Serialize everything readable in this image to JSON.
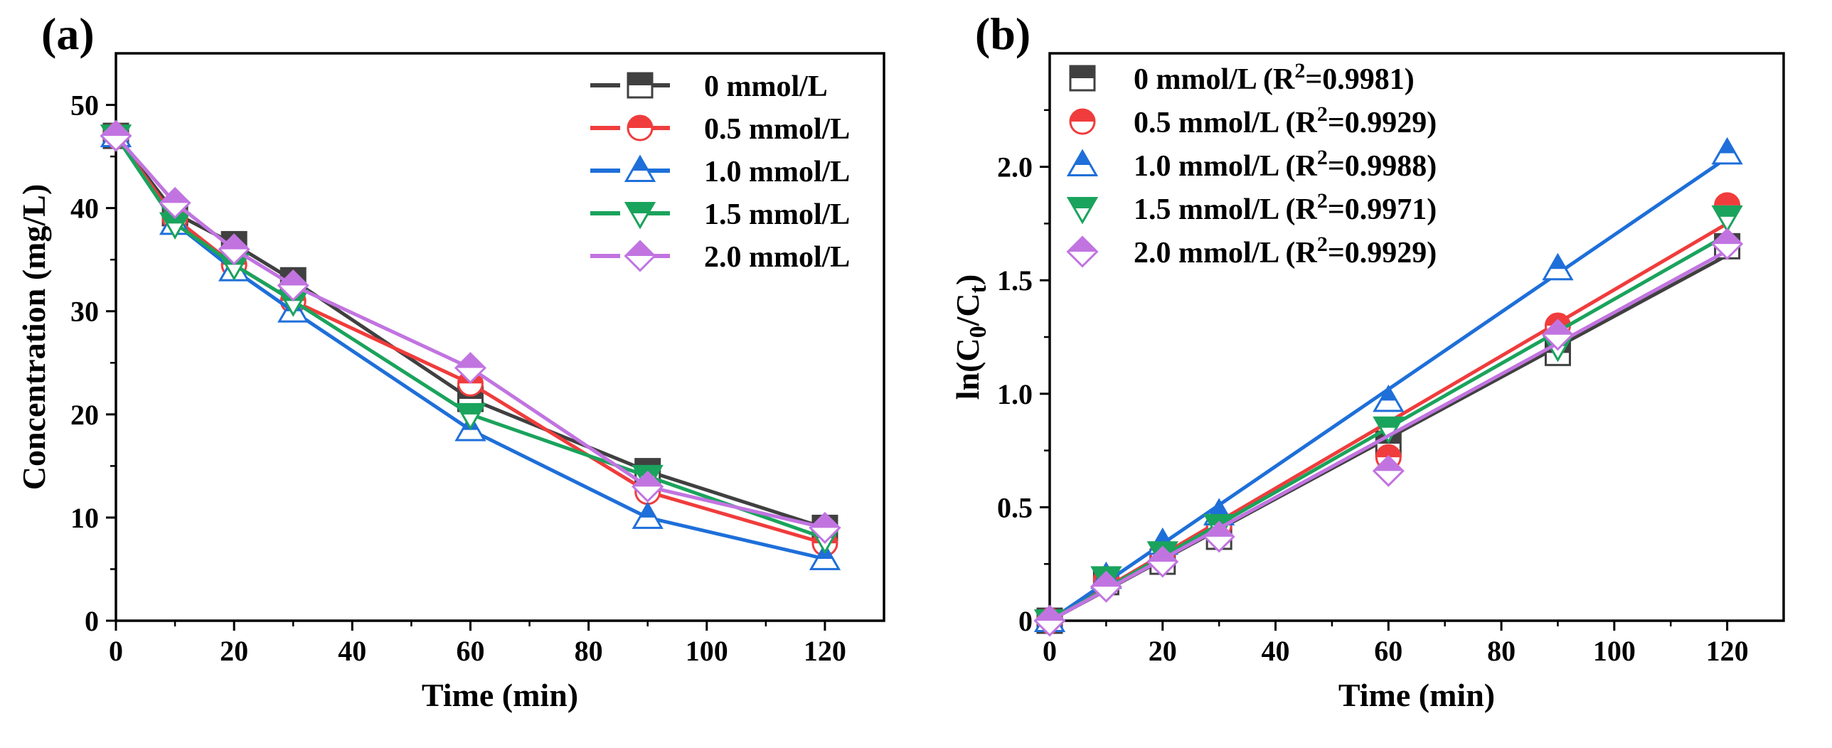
{
  "chart_data": [
    {
      "panel_label": "(a)",
      "type": "line",
      "xlabel": "Time (min)",
      "ylabel": "Concentration (mg/L)",
      "xlim": [
        0,
        130
      ],
      "ylim": [
        0,
        55
      ],
      "xticks": [
        0,
        20,
        40,
        60,
        80,
        100,
        120
      ],
      "yticks": [
        0,
        10,
        20,
        30,
        40,
        50
      ],
      "legend_position": "top-right",
      "series": [
        {
          "name": "0 mmol/L",
          "color": "#404040",
          "marker": "square",
          "x": [
            0,
            10,
            20,
            30,
            60,
            90,
            120
          ],
          "y": [
            47.0,
            39.5,
            36.5,
            33.0,
            21.5,
            14.5,
            9.0
          ]
        },
        {
          "name": "0.5 mmol/L",
          "color": "#f03c3c",
          "marker": "circle",
          "x": [
            0,
            10,
            20,
            30,
            60,
            90,
            120
          ],
          "y": [
            47.0,
            39.0,
            34.5,
            31.0,
            23.0,
            12.5,
            7.5
          ]
        },
        {
          "name": "1.0 mmol/L",
          "color": "#1e6fd9",
          "marker": "triangle-up",
          "x": [
            0,
            10,
            20,
            30,
            60,
            90,
            120
          ],
          "y": [
            47.0,
            38.5,
            34.0,
            30.0,
            18.5,
            10.0,
            6.0
          ]
        },
        {
          "name": "1.5 mmol/L",
          "color": "#1aa35c",
          "marker": "triangle-down",
          "x": [
            0,
            10,
            20,
            30,
            60,
            90,
            120
          ],
          "y": [
            47.0,
            38.5,
            34.5,
            31.0,
            20.0,
            14.0,
            8.0
          ]
        },
        {
          "name": "2.0 mmol/L",
          "color": "#c174e0",
          "marker": "diamond",
          "x": [
            0,
            10,
            20,
            30,
            60,
            90,
            120
          ],
          "y": [
            47.0,
            40.5,
            36.0,
            32.5,
            24.5,
            13.0,
            9.0
          ]
        }
      ]
    },
    {
      "panel_label": "(b)",
      "type": "scatter",
      "xlabel": "Time (min)",
      "ylabel": "ln(C0/Ct)",
      "ylabel_parts": {
        "prefix": "ln(C",
        "sub1": "0",
        "mid": "/C",
        "sub2": "t",
        "suffix": ")"
      },
      "xlim": [
        0,
        130
      ],
      "ylim": [
        0,
        2.5
      ],
      "xticks": [
        0,
        20,
        40,
        60,
        80,
        100,
        120
      ],
      "yticks": [
        0,
        0.5,
        1.0,
        1.5,
        2.0
      ],
      "ytick_labels": [
        "0",
        "0.5",
        "1.0",
        "1.5",
        "2.0"
      ],
      "legend_position": "top-left",
      "series": [
        {
          "name": "0 mmol/L",
          "r2": "0.9981",
          "color": "#404040",
          "marker": "square",
          "x": [
            0,
            10,
            20,
            30,
            60,
            90,
            120
          ],
          "y": [
            0,
            0.17,
            0.26,
            0.37,
            0.78,
            1.18,
            1.65
          ],
          "fit": {
            "x0": 0,
            "y0": 0.0,
            "x1": 120,
            "y1": 1.61
          }
        },
        {
          "name": "0.5 mmol/L",
          "r2": "0.9929",
          "color": "#f03c3c",
          "marker": "circle",
          "x": [
            0,
            10,
            20,
            30,
            60,
            90,
            120
          ],
          "y": [
            0,
            0.18,
            0.3,
            0.42,
            0.72,
            1.3,
            1.83
          ],
          "fit": {
            "x0": 0,
            "y0": 0.0,
            "x1": 120,
            "y1": 1.75
          }
        },
        {
          "name": "1.0 mmol/L",
          "r2": "0.9988",
          "color": "#1e6fd9",
          "marker": "triangle-up",
          "x": [
            0,
            10,
            20,
            30,
            60,
            90,
            120
          ],
          "y": [
            0,
            0.19,
            0.34,
            0.47,
            0.97,
            1.55,
            2.06
          ],
          "fit": {
            "x0": 0,
            "y0": 0.0,
            "x1": 120,
            "y1": 2.04
          }
        },
        {
          "name": "1.5 mmol/L",
          "r2": "0.9971",
          "color": "#1aa35c",
          "marker": "triangle-down",
          "x": [
            0,
            10,
            20,
            30,
            60,
            90,
            120
          ],
          "y": [
            0,
            0.19,
            0.3,
            0.42,
            0.85,
            1.21,
            1.78
          ],
          "fit": {
            "x0": 0,
            "y0": 0.0,
            "x1": 120,
            "y1": 1.7
          }
        },
        {
          "name": "2.0 mmol/L",
          "r2": "0.9929",
          "color": "#c174e0",
          "marker": "diamond",
          "x": [
            0,
            10,
            20,
            30,
            60,
            90,
            120
          ],
          "y": [
            0,
            0.15,
            0.26,
            0.37,
            0.66,
            1.26,
            1.66
          ],
          "fit": {
            "x0": 0,
            "y0": 0.0,
            "x1": 120,
            "y1": 1.63
          }
        }
      ]
    }
  ]
}
